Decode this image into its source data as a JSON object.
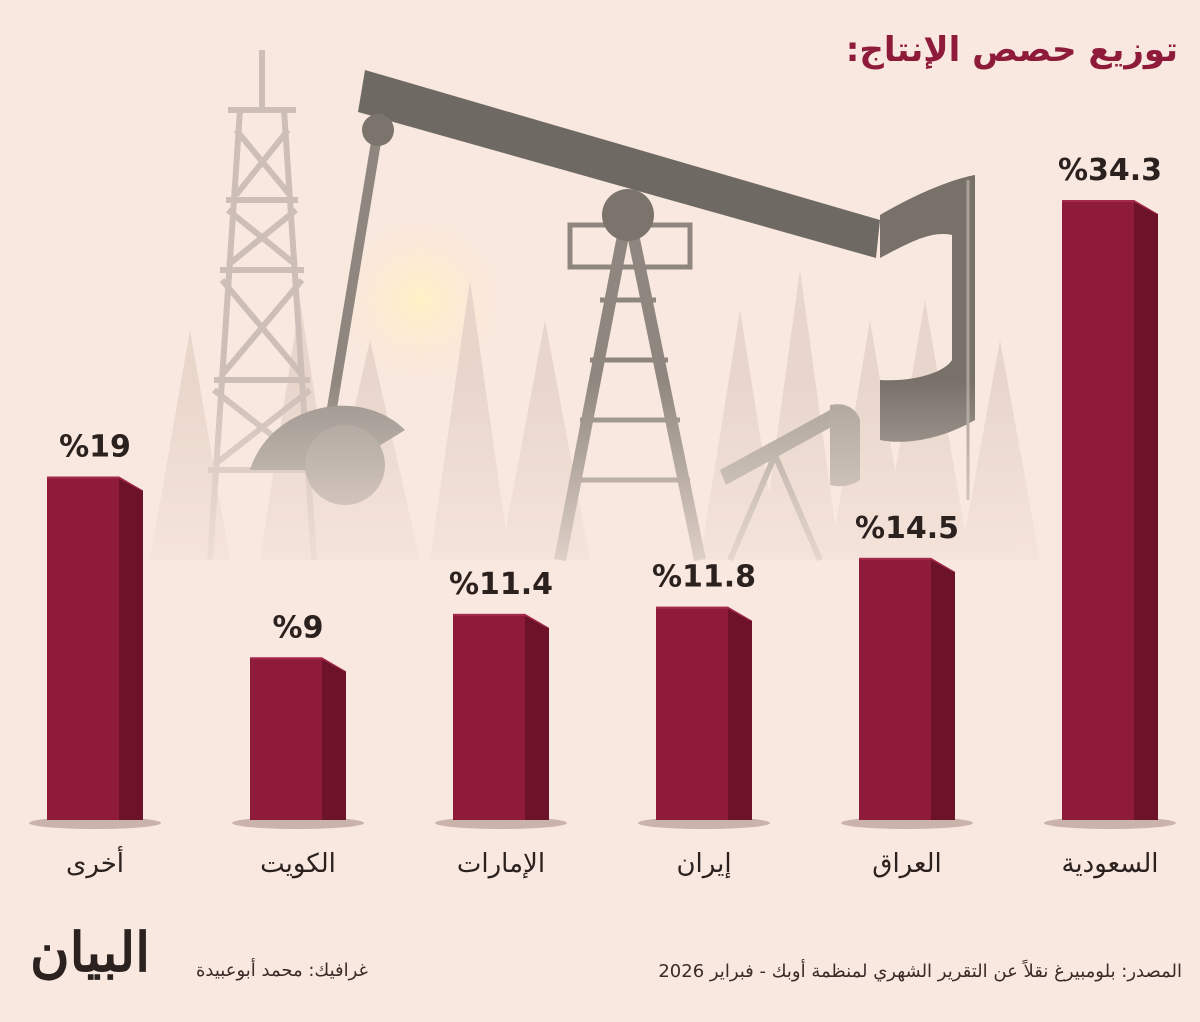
{
  "title": "توزيع حصص الإنتاج:",
  "chart_data": {
    "type": "bar",
    "orientation": "vertical",
    "categories": [
      "السعودية",
      "العراق",
      "إيران",
      "الإمارات",
      "الكويت",
      "أخرى"
    ],
    "values": [
      34.3,
      14.5,
      11.8,
      11.4,
      9,
      19
    ],
    "value_labels": [
      "%34.3",
      "%14.5",
      "%11.8",
      "%11.4",
      "%9",
      "%19"
    ],
    "category_order": "right-to-left",
    "ylim": [
      0,
      34.3
    ],
    "grid": false,
    "colors": {
      "bar_front": "#8e1b3a",
      "bar_side": "#6c1229",
      "bar_top": "#a4294a",
      "shadow": "#c9b3aa",
      "background": "#f9e8df"
    }
  },
  "footer": {
    "source": "المصدر: بلومبيرغ نقلاً عن التقرير الشهري لمنظمة أوبك - فبراير 2026",
    "credit": "غرافيك: محمد أبوعبيدة",
    "logo": "البيان"
  },
  "background_illustration": "oil-pump-jack-and-derrick-icon"
}
